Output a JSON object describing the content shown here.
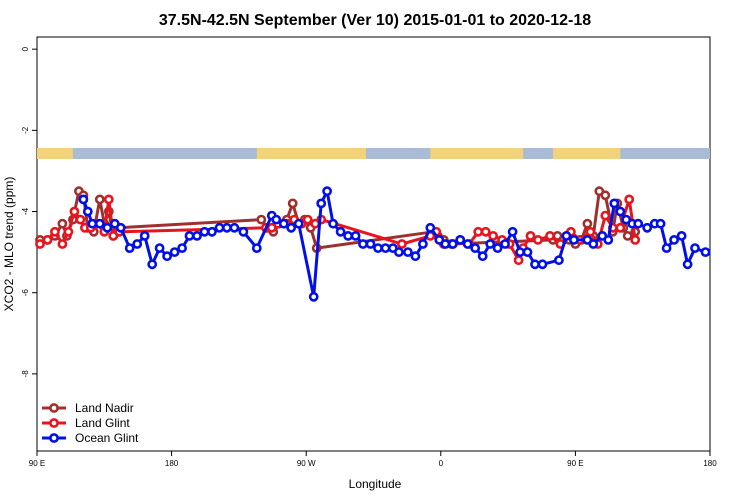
{
  "chart_data": {
    "type": "line",
    "title": "37.5N-42.5N September (Ver 10)   2015-01-01 to 2020-12-18",
    "xlabel": "Longitude",
    "ylabel": "XCO2 - MLO trend (ppm)",
    "x_ticks": [
      {
        "value": 0,
        "label": "90 E"
      },
      {
        "value": 90,
        "label": "180"
      },
      {
        "value": 180,
        "label": "90 W"
      },
      {
        "value": 270,
        "label": "0"
      },
      {
        "value": 360,
        "label": "90 E"
      },
      {
        "value": 450,
        "label": "180"
      }
    ],
    "y_ticks": [
      0,
      -2,
      -4,
      -6,
      -8
    ],
    "xlim": [
      0,
      450
    ],
    "ylim": [
      -9.9,
      0.3
    ],
    "legend_position": "bottom-left",
    "land_mask_colors": {
      "land": "#F2D27A",
      "ocean": "#A9BCD6"
    },
    "land_segments": [
      [
        0,
        24
      ],
      [
        147,
        220
      ],
      [
        263,
        325
      ],
      [
        345,
        390
      ]
    ],
    "series": [
      {
        "name": "Land Nadir",
        "color": "#A0302E",
        "x": [
          2,
          7,
          12,
          17,
          20,
          24,
          28,
          31,
          34,
          38,
          42,
          45,
          48,
          51,
          54,
          150,
          154,
          158,
          162,
          167,
          171,
          175,
          179,
          183,
          187,
          265,
          268,
          272,
          277,
          345,
          348,
          352,
          356,
          360,
          364,
          368,
          372,
          376,
          380,
          385,
          388,
          392,
          395,
          400
        ],
        "y": [
          -4.7,
          -4.7,
          -4.6,
          -4.3,
          -4.6,
          -4.2,
          -3.5,
          -3.6,
          -4.4,
          -4.5,
          -3.7,
          -4.3,
          -4.0,
          -4.6,
          -4.4,
          -4.2,
          -4.4,
          -4.5,
          -4.3,
          -4.2,
          -3.8,
          -4.3,
          -4.2,
          -4.4,
          -4.9,
          -4.5,
          -4.6,
          -4.7,
          -4.8,
          -4.7,
          -4.6,
          -4.7,
          -4.7,
          -4.8,
          -4.7,
          -4.3,
          -4.6,
          -3.5,
          -3.6,
          -4.5,
          -3.8,
          -4.4,
          -4.6,
          -4.5
        ]
      },
      {
        "name": "Land Glint",
        "color": "#E8141E",
        "x": [
          2,
          7,
          12,
          17,
          21,
          25,
          29,
          32,
          36,
          40,
          45,
          48,
          51,
          55,
          153,
          157,
          161,
          167,
          172,
          177,
          181,
          186,
          190,
          244,
          263,
          267,
          272,
          278,
          283,
          289,
          295,
          300,
          305,
          311,
          316,
          322,
          325,
          330,
          335,
          343,
          350,
          357,
          363,
          370,
          375,
          380,
          385,
          390,
          396,
          400
        ],
        "y": [
          -4.8,
          -4.7,
          -4.5,
          -4.8,
          -4.5,
          -4.0,
          -4.2,
          -4.4,
          -4.4,
          -4.3,
          -4.5,
          -3.7,
          -4.6,
          -4.5,
          -4.4,
          -4.4,
          -4.3,
          -4.3,
          -4.2,
          -4.3,
          -4.2,
          -4.3,
          -4.2,
          -4.8,
          -4.6,
          -4.5,
          -4.8,
          -4.8,
          -4.7,
          -4.8,
          -4.5,
          -4.5,
          -4.6,
          -4.7,
          -4.8,
          -5.2,
          -4.9,
          -4.6,
          -4.7,
          -4.6,
          -4.8,
          -4.5,
          -4.7,
          -4.5,
          -4.8,
          -4.1,
          -4.4,
          -4.4,
          -3.7,
          -4.7
        ]
      },
      {
        "name": "Ocean Glint",
        "color": "#0010E6",
        "x": [
          31,
          34,
          37,
          42,
          47,
          52,
          56,
          62,
          67,
          72,
          77,
          82,
          87,
          92,
          97,
          102,
          107,
          112,
          117,
          122,
          127,
          132,
          138,
          147,
          157,
          160,
          165,
          170,
          175,
          185,
          190,
          194,
          198,
          203,
          208,
          213,
          218,
          223,
          228,
          233,
          238,
          242,
          248,
          253,
          258,
          263,
          269,
          273,
          278,
          283,
          288,
          293,
          298,
          303,
          308,
          313,
          318,
          323,
          328,
          333,
          338,
          349,
          354,
          359,
          368,
          372,
          378,
          382,
          386,
          390,
          394,
          398,
          402,
          408,
          413,
          417,
          421,
          426,
          431,
          435,
          440,
          447
        ],
        "y": [
          -3.7,
          -4.0,
          -4.3,
          -4.3,
          -4.4,
          -4.3,
          -4.4,
          -4.9,
          -4.8,
          -4.6,
          -5.3,
          -4.9,
          -5.1,
          -5.0,
          -4.9,
          -4.6,
          -4.6,
          -4.5,
          -4.5,
          -4.4,
          -4.4,
          -4.4,
          -4.5,
          -4.9,
          -4.1,
          -4.2,
          -4.3,
          -4.4,
          -4.3,
          -6.1,
          -3.8,
          -3.5,
          -4.3,
          -4.5,
          -4.6,
          -4.6,
          -4.8,
          -4.8,
          -4.9,
          -4.9,
          -4.9,
          -5.0,
          -5.0,
          -5.1,
          -4.8,
          -4.4,
          -4.7,
          -4.8,
          -4.8,
          -4.7,
          -4.8,
          -4.9,
          -5.1,
          -4.8,
          -4.9,
          -4.8,
          -4.5,
          -5.0,
          -5.0,
          -5.3,
          -5.3,
          -5.2,
          -4.6,
          -4.7,
          -4.7,
          -4.8,
          -4.6,
          -4.7,
          -3.8,
          -4.0,
          -4.2,
          -4.3,
          -4.3,
          -4.4,
          -4.3,
          -4.3,
          -4.9,
          -4.7,
          -4.6,
          -5.3,
          -4.9,
          -5.0
        ]
      }
    ]
  }
}
